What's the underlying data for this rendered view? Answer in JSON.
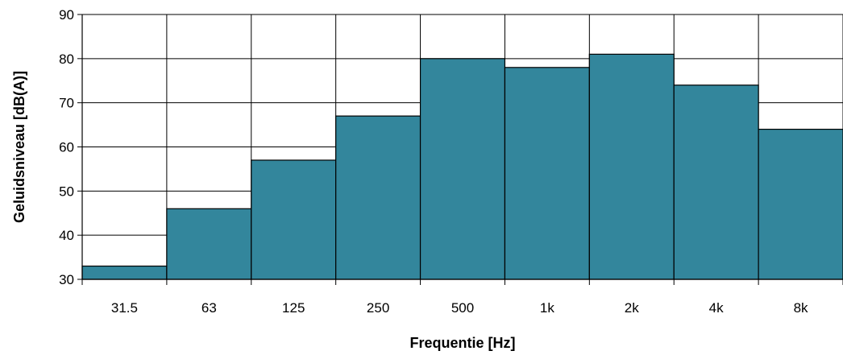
{
  "chart_data": {
    "type": "bar",
    "title": "",
    "xlabel": "Frequentie [Hz]",
    "ylabel": "Geluidsniveau [dB(A)]",
    "categories": [
      "31.5",
      "63",
      "125",
      "250",
      "500",
      "1k",
      "2k",
      "4k",
      "8k"
    ],
    "values": [
      33,
      46,
      57,
      67,
      80,
      78,
      81,
      74,
      64
    ],
    "ylim": [
      30,
      90
    ],
    "yticks": [
      "30",
      "40",
      "50",
      "60",
      "70",
      "80",
      "90"
    ],
    "grid": true,
    "legend": "none",
    "bar_color": "#33869c",
    "bar_edge_color": "#000000",
    "gap_between_bars": false
  }
}
